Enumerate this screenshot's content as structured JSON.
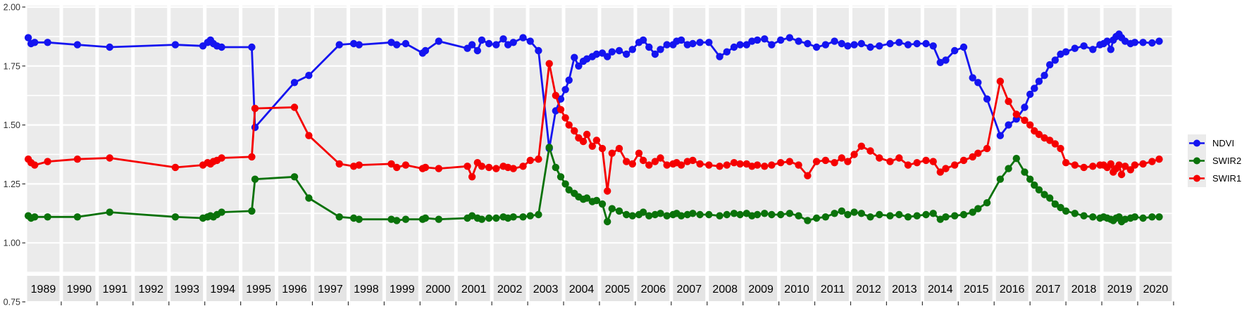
{
  "colors": {
    "background": "#FFFFFF",
    "panel": "#EBEBEB",
    "strip": "#E4E4E4",
    "grid": "#FFFFFF",
    "tick": "#333333",
    "axis_text": "#333333",
    "strip_text": "#000000"
  },
  "legend": {
    "position": "right"
  },
  "chart_data": {
    "type": "line",
    "title": "",
    "xlabel": "",
    "ylabel": "",
    "grid": "on",
    "legend_position": "right-center",
    "ylim": [
      0.75,
      2.0
    ],
    "x_start": 1989,
    "categories": [
      "1989",
      "1990",
      "1991",
      "1992",
      "1993",
      "1994",
      "1995",
      "1996",
      "1997",
      "1998",
      "1999",
      "2000",
      "2001",
      "2002",
      "2003",
      "2004",
      "2005",
      "2006",
      "2007",
      "2008",
      "2009",
      "2010",
      "2011",
      "2012",
      "2013",
      "2014",
      "2015",
      "2016",
      "2017",
      "2018",
      "2019",
      "2020"
    ],
    "y_ticks": {
      "labels": [
        "2.00",
        "1.75",
        "1.50",
        "1.25",
        "1.00",
        "0.75"
      ],
      "values": [
        2.0,
        1.75,
        1.5,
        1.25,
        1.0,
        0.75
      ]
    },
    "x": [
      1989.08,
      1989.16,
      1989.26,
      1989.62,
      1990.45,
      1991.35,
      1993.18,
      1993.95,
      1994.08,
      1994.16,
      1994.24,
      1994.34,
      1994.47,
      1995.31,
      1995.4,
      1996.5,
      1996.9,
      1997.75,
      1998.15,
      1998.3,
      1999.2,
      1999.35,
      1999.6,
      2000.07,
      2000.15,
      2000.52,
      2001.32,
      2001.45,
      2001.6,
      2001.72,
      2001.92,
      2002.12,
      2002.32,
      2002.45,
      2002.6,
      2002.87,
      2003.07,
      2003.3,
      2003.6,
      2003.78,
      2003.92,
      2004.05,
      2004.15,
      2004.3,
      2004.42,
      2004.55,
      2004.65,
      2004.8,
      2004.92,
      2005.08,
      2005.22,
      2005.35,
      2005.55,
      2005.75,
      2005.92,
      2006.1,
      2006.22,
      2006.38,
      2006.55,
      2006.7,
      2006.88,
      2007.05,
      2007.15,
      2007.28,
      2007.45,
      2007.6,
      2007.8,
      2008.05,
      2008.35,
      2008.55,
      2008.75,
      2008.92,
      2009.1,
      2009.25,
      2009.4,
      2009.6,
      2009.8,
      2010.05,
      2010.3,
      2010.55,
      2010.8,
      2011.05,
      2011.3,
      2011.55,
      2011.75,
      2011.92,
      2012.1,
      2012.3,
      2012.55,
      2012.8,
      2013.1,
      2013.35,
      2013.6,
      2013.85,
      2014.1,
      2014.3,
      2014.5,
      2014.65,
      2014.9,
      2015.15,
      2015.4,
      2015.55,
      2015.8,
      2016.17,
      2016.4,
      2016.62,
      2016.85,
      2017.0,
      2017.12,
      2017.25,
      2017.4,
      2017.55,
      2017.7,
      2017.85,
      2018.0,
      2018.25,
      2018.5,
      2018.75,
      2018.95,
      2019.05,
      2019.15,
      2019.25,
      2019.32,
      2019.4,
      2019.48,
      2019.55,
      2019.65,
      2019.8,
      2019.92,
      2020.15,
      2020.4,
      2020.6
    ],
    "series": [
      {
        "name": "NDVI",
        "color": "#1414F0",
        "values": [
          1.87,
          1.845,
          1.85,
          1.85,
          1.84,
          1.83,
          1.84,
          1.835,
          1.85,
          1.86,
          1.845,
          1.835,
          1.83,
          1.83,
          1.49,
          1.68,
          1.71,
          1.84,
          1.845,
          1.84,
          1.85,
          1.84,
          1.845,
          1.805,
          1.815,
          1.855,
          1.825,
          1.84,
          1.815,
          1.86,
          1.845,
          1.84,
          1.865,
          1.84,
          1.85,
          1.87,
          1.855,
          1.815,
          1.4,
          1.56,
          1.61,
          1.65,
          1.69,
          1.786,
          1.75,
          1.77,
          1.78,
          1.79,
          1.8,
          1.805,
          1.79,
          1.81,
          1.815,
          1.8,
          1.82,
          1.85,
          1.86,
          1.83,
          1.8,
          1.82,
          1.84,
          1.84,
          1.855,
          1.86,
          1.84,
          1.845,
          1.85,
          1.85,
          1.79,
          1.81,
          1.83,
          1.84,
          1.84,
          1.855,
          1.86,
          1.865,
          1.84,
          1.86,
          1.87,
          1.855,
          1.845,
          1.83,
          1.84,
          1.855,
          1.845,
          1.835,
          1.84,
          1.845,
          1.83,
          1.835,
          1.845,
          1.85,
          1.84,
          1.845,
          1.845,
          1.835,
          1.765,
          1.775,
          1.815,
          1.83,
          1.7,
          1.68,
          1.61,
          1.455,
          1.5,
          1.525,
          1.575,
          1.63,
          1.655,
          1.685,
          1.71,
          1.755,
          1.775,
          1.8,
          1.81,
          1.825,
          1.835,
          1.82,
          1.84,
          1.845,
          1.855,
          1.82,
          1.86,
          1.875,
          1.885,
          1.87,
          1.855,
          1.845,
          1.85,
          1.85,
          1.848,
          1.855
        ]
      },
      {
        "name": "SWIR2",
        "color": "#0A720A",
        "values": [
          1.115,
          1.105,
          1.11,
          1.11,
          1.11,
          1.13,
          1.11,
          1.105,
          1.11,
          1.115,
          1.11,
          1.12,
          1.13,
          1.135,
          1.27,
          1.28,
          1.19,
          1.11,
          1.105,
          1.1,
          1.1,
          1.095,
          1.1,
          1.1,
          1.105,
          1.1,
          1.105,
          1.115,
          1.105,
          1.1,
          1.105,
          1.105,
          1.11,
          1.105,
          1.11,
          1.11,
          1.115,
          1.12,
          1.405,
          1.32,
          1.28,
          1.25,
          1.225,
          1.21,
          1.195,
          1.185,
          1.19,
          1.175,
          1.18,
          1.165,
          1.09,
          1.145,
          1.135,
          1.12,
          1.115,
          1.12,
          1.13,
          1.115,
          1.12,
          1.125,
          1.115,
          1.12,
          1.125,
          1.115,
          1.12,
          1.125,
          1.12,
          1.12,
          1.115,
          1.12,
          1.125,
          1.12,
          1.125,
          1.115,
          1.12,
          1.125,
          1.12,
          1.12,
          1.125,
          1.115,
          1.095,
          1.105,
          1.11,
          1.125,
          1.135,
          1.12,
          1.13,
          1.125,
          1.11,
          1.12,
          1.115,
          1.12,
          1.11,
          1.115,
          1.12,
          1.125,
          1.1,
          1.11,
          1.115,
          1.12,
          1.13,
          1.145,
          1.17,
          1.27,
          1.315,
          1.358,
          1.3,
          1.27,
          1.245,
          1.225,
          1.205,
          1.19,
          1.165,
          1.15,
          1.135,
          1.125,
          1.115,
          1.11,
          1.105,
          1.11,
          1.105,
          1.1,
          1.095,
          1.105,
          1.11,
          1.09,
          1.1,
          1.105,
          1.11,
          1.105,
          1.11,
          1.11
        ]
      },
      {
        "name": "SWIR1",
        "color": "#F50000",
        "values": [
          1.355,
          1.34,
          1.33,
          1.345,
          1.355,
          1.36,
          1.32,
          1.33,
          1.34,
          1.335,
          1.345,
          1.35,
          1.36,
          1.365,
          1.57,
          1.575,
          1.455,
          1.335,
          1.325,
          1.33,
          1.335,
          1.32,
          1.33,
          1.315,
          1.32,
          1.315,
          1.325,
          1.28,
          1.34,
          1.325,
          1.32,
          1.315,
          1.325,
          1.32,
          1.315,
          1.325,
          1.35,
          1.355,
          1.76,
          1.625,
          1.565,
          1.53,
          1.5,
          1.475,
          1.445,
          1.43,
          1.46,
          1.41,
          1.435,
          1.4,
          1.22,
          1.38,
          1.4,
          1.345,
          1.335,
          1.38,
          1.35,
          1.33,
          1.345,
          1.36,
          1.33,
          1.335,
          1.34,
          1.33,
          1.345,
          1.35,
          1.335,
          1.33,
          1.325,
          1.33,
          1.34,
          1.335,
          1.335,
          1.325,
          1.33,
          1.325,
          1.33,
          1.34,
          1.345,
          1.33,
          1.285,
          1.345,
          1.35,
          1.34,
          1.36,
          1.345,
          1.375,
          1.41,
          1.39,
          1.36,
          1.345,
          1.36,
          1.33,
          1.34,
          1.35,
          1.345,
          1.3,
          1.315,
          1.33,
          1.35,
          1.365,
          1.38,
          1.4,
          1.685,
          1.6,
          1.545,
          1.52,
          1.5,
          1.475,
          1.46,
          1.445,
          1.435,
          1.42,
          1.4,
          1.34,
          1.33,
          1.32,
          1.325,
          1.33,
          1.33,
          1.32,
          1.335,
          1.3,
          1.315,
          1.33,
          1.29,
          1.325,
          1.31,
          1.33,
          1.335,
          1.345,
          1.355
        ]
      }
    ]
  }
}
